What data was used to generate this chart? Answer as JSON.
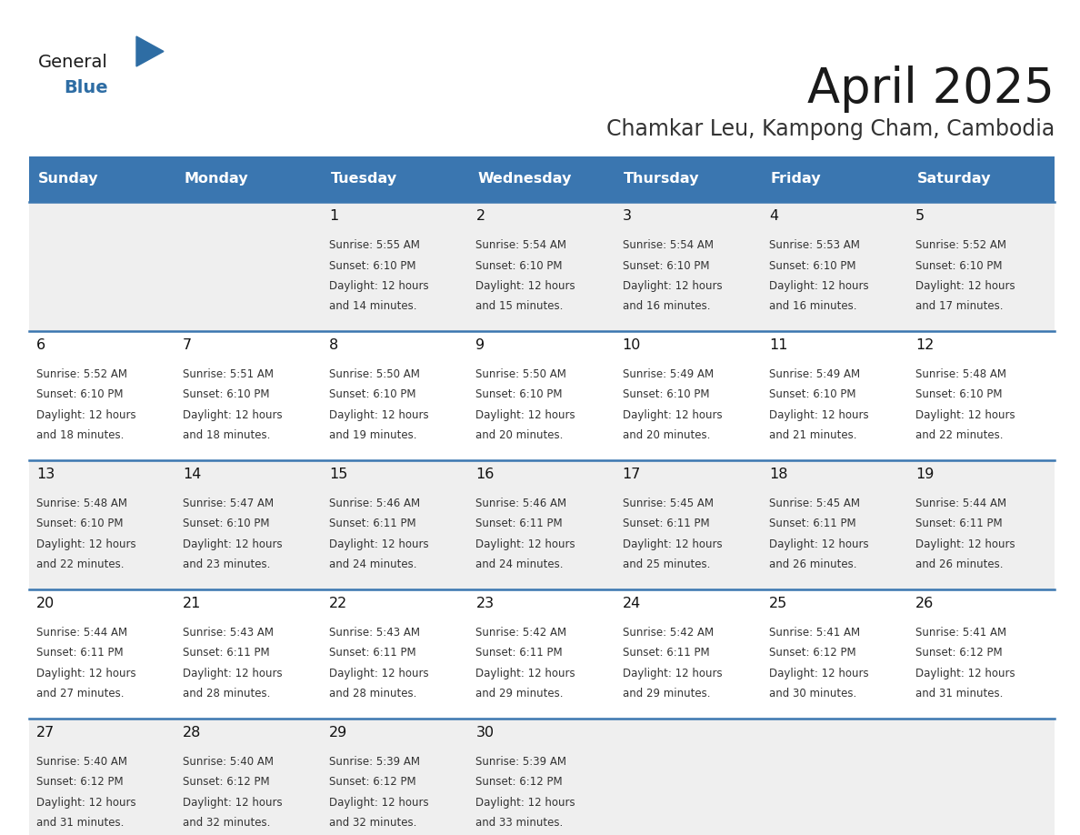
{
  "title": "April 2025",
  "subtitle": "Chamkar Leu, Kampong Cham, Cambodia",
  "days_of_week": [
    "Sunday",
    "Monday",
    "Tuesday",
    "Wednesday",
    "Thursday",
    "Friday",
    "Saturday"
  ],
  "header_bg": "#3a76b0",
  "header_text": "#ffffff",
  "row_bg_odd": "#efefef",
  "row_bg_even": "#ffffff",
  "cell_text_color": "#333333",
  "day_num_color": "#111111",
  "divider_color": "#3a76b0",
  "title_color": "#1a1a1a",
  "subtitle_color": "#333333",
  "logo_general_color": "#1a1a1a",
  "logo_blue_color": "#2e6da4",
  "logo_triangle_color": "#2e6da4",
  "calendar_data": [
    {
      "day": 1,
      "col": 2,
      "row": 0,
      "sunrise": "5:55 AM",
      "sunset": "6:10 PM",
      "daylight_hours": "12 hours",
      "daylight_mins": "14 minutes."
    },
    {
      "day": 2,
      "col": 3,
      "row": 0,
      "sunrise": "5:54 AM",
      "sunset": "6:10 PM",
      "daylight_hours": "12 hours",
      "daylight_mins": "15 minutes."
    },
    {
      "day": 3,
      "col": 4,
      "row": 0,
      "sunrise": "5:54 AM",
      "sunset": "6:10 PM",
      "daylight_hours": "12 hours",
      "daylight_mins": "16 minutes."
    },
    {
      "day": 4,
      "col": 5,
      "row": 0,
      "sunrise": "5:53 AM",
      "sunset": "6:10 PM",
      "daylight_hours": "12 hours",
      "daylight_mins": "16 minutes."
    },
    {
      "day": 5,
      "col": 6,
      "row": 0,
      "sunrise": "5:52 AM",
      "sunset": "6:10 PM",
      "daylight_hours": "12 hours",
      "daylight_mins": "17 minutes."
    },
    {
      "day": 6,
      "col": 0,
      "row": 1,
      "sunrise": "5:52 AM",
      "sunset": "6:10 PM",
      "daylight_hours": "12 hours",
      "daylight_mins": "18 minutes."
    },
    {
      "day": 7,
      "col": 1,
      "row": 1,
      "sunrise": "5:51 AM",
      "sunset": "6:10 PM",
      "daylight_hours": "12 hours",
      "daylight_mins": "18 minutes."
    },
    {
      "day": 8,
      "col": 2,
      "row": 1,
      "sunrise": "5:50 AM",
      "sunset": "6:10 PM",
      "daylight_hours": "12 hours",
      "daylight_mins": "19 minutes."
    },
    {
      "day": 9,
      "col": 3,
      "row": 1,
      "sunrise": "5:50 AM",
      "sunset": "6:10 PM",
      "daylight_hours": "12 hours",
      "daylight_mins": "20 minutes."
    },
    {
      "day": 10,
      "col": 4,
      "row": 1,
      "sunrise": "5:49 AM",
      "sunset": "6:10 PM",
      "daylight_hours": "12 hours",
      "daylight_mins": "20 minutes."
    },
    {
      "day": 11,
      "col": 5,
      "row": 1,
      "sunrise": "5:49 AM",
      "sunset": "6:10 PM",
      "daylight_hours": "12 hours",
      "daylight_mins": "21 minutes."
    },
    {
      "day": 12,
      "col": 6,
      "row": 1,
      "sunrise": "5:48 AM",
      "sunset": "6:10 PM",
      "daylight_hours": "12 hours",
      "daylight_mins": "22 minutes."
    },
    {
      "day": 13,
      "col": 0,
      "row": 2,
      "sunrise": "5:48 AM",
      "sunset": "6:10 PM",
      "daylight_hours": "12 hours",
      "daylight_mins": "22 minutes."
    },
    {
      "day": 14,
      "col": 1,
      "row": 2,
      "sunrise": "5:47 AM",
      "sunset": "6:10 PM",
      "daylight_hours": "12 hours",
      "daylight_mins": "23 minutes."
    },
    {
      "day": 15,
      "col": 2,
      "row": 2,
      "sunrise": "5:46 AM",
      "sunset": "6:11 PM",
      "daylight_hours": "12 hours",
      "daylight_mins": "24 minutes."
    },
    {
      "day": 16,
      "col": 3,
      "row": 2,
      "sunrise": "5:46 AM",
      "sunset": "6:11 PM",
      "daylight_hours": "12 hours",
      "daylight_mins": "24 minutes."
    },
    {
      "day": 17,
      "col": 4,
      "row": 2,
      "sunrise": "5:45 AM",
      "sunset": "6:11 PM",
      "daylight_hours": "12 hours",
      "daylight_mins": "25 minutes."
    },
    {
      "day": 18,
      "col": 5,
      "row": 2,
      "sunrise": "5:45 AM",
      "sunset": "6:11 PM",
      "daylight_hours": "12 hours",
      "daylight_mins": "26 minutes."
    },
    {
      "day": 19,
      "col": 6,
      "row": 2,
      "sunrise": "5:44 AM",
      "sunset": "6:11 PM",
      "daylight_hours": "12 hours",
      "daylight_mins": "26 minutes."
    },
    {
      "day": 20,
      "col": 0,
      "row": 3,
      "sunrise": "5:44 AM",
      "sunset": "6:11 PM",
      "daylight_hours": "12 hours",
      "daylight_mins": "27 minutes."
    },
    {
      "day": 21,
      "col": 1,
      "row": 3,
      "sunrise": "5:43 AM",
      "sunset": "6:11 PM",
      "daylight_hours": "12 hours",
      "daylight_mins": "28 minutes."
    },
    {
      "day": 22,
      "col": 2,
      "row": 3,
      "sunrise": "5:43 AM",
      "sunset": "6:11 PM",
      "daylight_hours": "12 hours",
      "daylight_mins": "28 minutes."
    },
    {
      "day": 23,
      "col": 3,
      "row": 3,
      "sunrise": "5:42 AM",
      "sunset": "6:11 PM",
      "daylight_hours": "12 hours",
      "daylight_mins": "29 minutes."
    },
    {
      "day": 24,
      "col": 4,
      "row": 3,
      "sunrise": "5:42 AM",
      "sunset": "6:11 PM",
      "daylight_hours": "12 hours",
      "daylight_mins": "29 minutes."
    },
    {
      "day": 25,
      "col": 5,
      "row": 3,
      "sunrise": "5:41 AM",
      "sunset": "6:12 PM",
      "daylight_hours": "12 hours",
      "daylight_mins": "30 minutes."
    },
    {
      "day": 26,
      "col": 6,
      "row": 3,
      "sunrise": "5:41 AM",
      "sunset": "6:12 PM",
      "daylight_hours": "12 hours",
      "daylight_mins": "31 minutes."
    },
    {
      "day": 27,
      "col": 0,
      "row": 4,
      "sunrise": "5:40 AM",
      "sunset": "6:12 PM",
      "daylight_hours": "12 hours",
      "daylight_mins": "31 minutes."
    },
    {
      "day": 28,
      "col": 1,
      "row": 4,
      "sunrise": "5:40 AM",
      "sunset": "6:12 PM",
      "daylight_hours": "12 hours",
      "daylight_mins": "32 minutes."
    },
    {
      "day": 29,
      "col": 2,
      "row": 4,
      "sunrise": "5:39 AM",
      "sunset": "6:12 PM",
      "daylight_hours": "12 hours",
      "daylight_mins": "32 minutes."
    },
    {
      "day": 30,
      "col": 3,
      "row": 4,
      "sunrise": "5:39 AM",
      "sunset": "6:12 PM",
      "daylight_hours": "12 hours",
      "daylight_mins": "33 minutes."
    }
  ]
}
